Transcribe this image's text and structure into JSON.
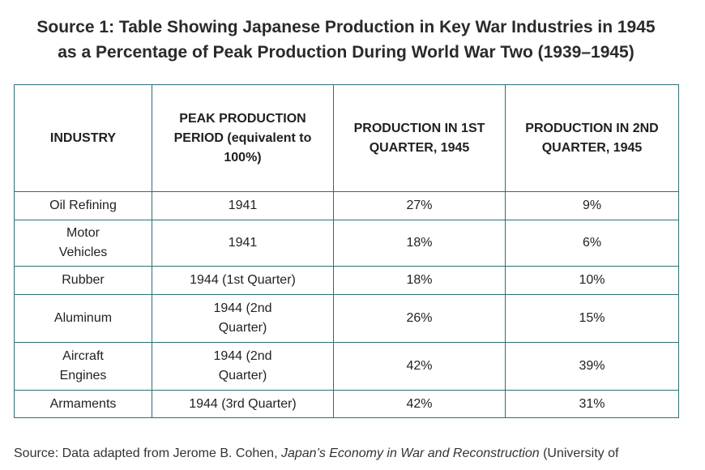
{
  "title": {
    "line1": "Source 1: Table Showing Japanese Production in Key War Industries in 1945",
    "line2": "as a Percentage of Peak Production During World War Two (1939–1945)"
  },
  "table": {
    "headers": [
      "INDUSTRY",
      "PEAK PRODUCTION PERIOD (equivalent to 100%)",
      "PRODUCTION IN 1ST QUARTER, 1945",
      "PRODUCTION IN 2ND QUARTER, 1945"
    ],
    "rows": [
      [
        "Oil Refining",
        "1941",
        "27%",
        "9%"
      ],
      [
        "Motor Vehicles",
        "1941",
        "18%",
        "6%"
      ],
      [
        "Rubber",
        "1944 (1st Quarter)",
        "18%",
        "10%"
      ],
      [
        "Aluminum",
        "1944 (2nd Quarter)",
        "26%",
        "15%"
      ],
      [
        "Aircraft Engines",
        "1944 (2nd Quarter)",
        "42%",
        "39%"
      ],
      [
        "Armaments",
        "1944 (3rd Quarter)",
        "42%",
        "31%"
      ]
    ]
  },
  "source": {
    "prefix": "Source: Data adapted from Jerome B. Cohen, ",
    "book": "Japan’s Economy in War and Reconstruction",
    "suffix": " (University of"
  }
}
